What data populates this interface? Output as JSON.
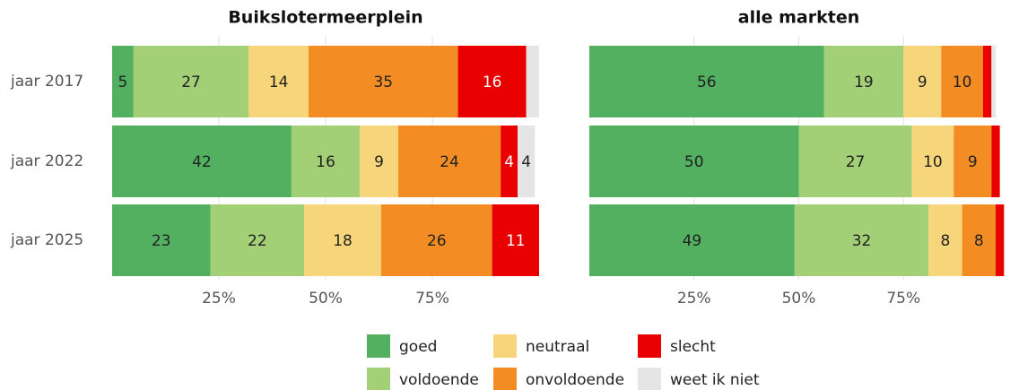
{
  "chart_data": [
    {
      "type": "bar",
      "title": "Buikslotermeerplein",
      "categories": [
        "jaar 2017",
        "jaar 2022",
        "jaar 2025"
      ],
      "xlim": [
        0,
        100
      ],
      "xticks": [
        {
          "value": 25,
          "label": "25%"
        },
        {
          "value": 50,
          "label": "50%"
        },
        {
          "value": 75,
          "label": "75%"
        }
      ],
      "grid": true,
      "series": [
        {
          "name": "goed",
          "color": "#52b060",
          "values": [
            5,
            42,
            23
          ],
          "value_labels": [
            "5",
            "42",
            "23"
          ]
        },
        {
          "name": "voldoende",
          "color": "#a3cf76",
          "values": [
            27,
            16,
            22
          ],
          "value_labels": [
            "27",
            "16",
            "22"
          ]
        },
        {
          "name": "neutraal",
          "color": "#f7d57a",
          "values": [
            14,
            9,
            18
          ],
          "value_labels": [
            "14",
            "9",
            "18"
          ]
        },
        {
          "name": "onvoldoende",
          "color": "#f28c23",
          "values": [
            35,
            24,
            26
          ],
          "value_labels": [
            "35",
            "24",
            "26"
          ]
        },
        {
          "name": "slecht",
          "color": "#e90000",
          "values": [
            16,
            4,
            11
          ],
          "value_labels": [
            "16",
            "4",
            "11"
          ]
        },
        {
          "name": "weet ik niet",
          "color": "#e5e5e5",
          "values": [
            3,
            4,
            null
          ],
          "value_labels": [
            null,
            "4",
            null
          ]
        }
      ]
    },
    {
      "type": "bar",
      "title": "alle markten",
      "xlim": [
        0,
        100
      ],
      "xticks": [
        {
          "value": 25,
          "label": "25%"
        },
        {
          "value": 50,
          "label": "50%"
        },
        {
          "value": 75,
          "label": "75%"
        }
      ],
      "grid": true,
      "series": [
        {
          "color": "#52b060",
          "values": [
            56,
            50,
            49
          ],
          "value_labels": [
            "56",
            "50",
            "49"
          ]
        },
        {
          "color": "#a3cf76",
          "values": [
            19,
            27,
            32
          ],
          "value_labels": [
            "19",
            "27",
            "32"
          ]
        },
        {
          "color": "#f7d57a",
          "values": [
            9,
            10,
            8
          ],
          "value_labels": [
            "9",
            "10",
            "8"
          ]
        },
        {
          "color": "#f28c23",
          "values": [
            10,
            9,
            8
          ],
          "value_labels": [
            "10",
            "9",
            "8"
          ]
        },
        {
          "color": "#e90000",
          "values": [
            2,
            2,
            2
          ],
          "value_labels": [
            null,
            null,
            null
          ]
        },
        {
          "color": "#e5e5e5",
          "values": [
            1,
            null,
            null
          ],
          "value_labels": [
            null,
            null,
            null
          ]
        }
      ]
    }
  ]
}
